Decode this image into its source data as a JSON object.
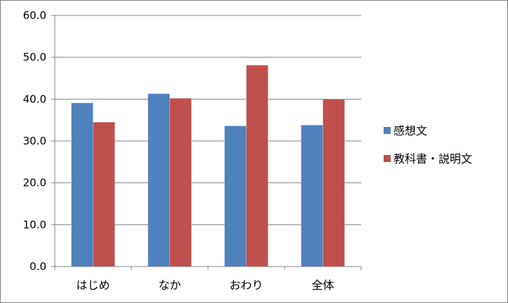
{
  "chart_data": {
    "type": "bar",
    "categories": [
      "はじめ",
      "なか",
      "おわり",
      "全体"
    ],
    "series": [
      {
        "name": "感想文",
        "values": [
          39.1,
          41.3,
          33.6,
          33.8
        ],
        "color": "#4f81bd"
      },
      {
        "name": "教科書・説明文",
        "values": [
          34.5,
          40.2,
          48.1,
          40.0
        ],
        "color": "#c0504d"
      }
    ],
    "ylim": [
      0,
      60
    ],
    "yticks": [
      "0.0",
      "10.0",
      "20.0",
      "30.0",
      "40.0",
      "50.0",
      "60.0"
    ],
    "grid": true,
    "legend_position": "right",
    "title": "",
    "xlabel": "",
    "ylabel": ""
  }
}
